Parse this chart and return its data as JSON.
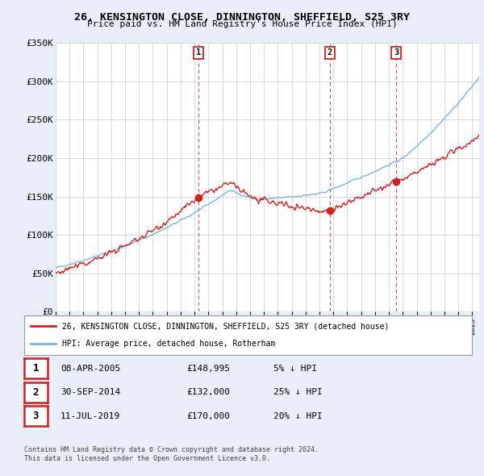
{
  "title": "26, KENSINGTON CLOSE, DINNINGTON, SHEFFIELD, S25 3RY",
  "subtitle": "Price paid vs. HM Land Registry's House Price Index (HPI)",
  "ylim": [
    0,
    350000
  ],
  "yticks": [
    0,
    50000,
    100000,
    150000,
    200000,
    250000,
    300000,
    350000
  ],
  "ytick_labels": [
    "£0",
    "£50K",
    "£100K",
    "£150K",
    "£200K",
    "£250K",
    "£300K",
    "£350K"
  ],
  "background_color": "#e8eef8",
  "plot_bg_color": "#ffffff",
  "hpi_color": "#7bb3e0",
  "price_color": "#cc2222",
  "transactions": [
    {
      "date_num": 2005.27,
      "price": 148995,
      "label": "1"
    },
    {
      "date_num": 2014.75,
      "price": 132000,
      "label": "2"
    },
    {
      "date_num": 2019.52,
      "price": 170000,
      "label": "3"
    }
  ],
  "vline_dates": [
    2005.27,
    2014.75,
    2019.52
  ],
  "legend_property": "26, KENSINGTON CLOSE, DINNINGTON, SHEFFIELD, S25 3RY (detached house)",
  "legend_hpi": "HPI: Average price, detached house, Rotherham",
  "table_rows": [
    [
      "1",
      "08-APR-2005",
      "£148,995",
      "5% ↓ HPI"
    ],
    [
      "2",
      "30-SEP-2014",
      "£132,000",
      "25% ↓ HPI"
    ],
    [
      "3",
      "11-JUL-2019",
      "£170,000",
      "20% ↓ HPI"
    ]
  ],
  "footnote": "Contains HM Land Registry data © Crown copyright and database right 2024.\nThis data is licensed under the Open Government Licence v3.0.",
  "xmin": 1995,
  "xmax": 2025.5
}
